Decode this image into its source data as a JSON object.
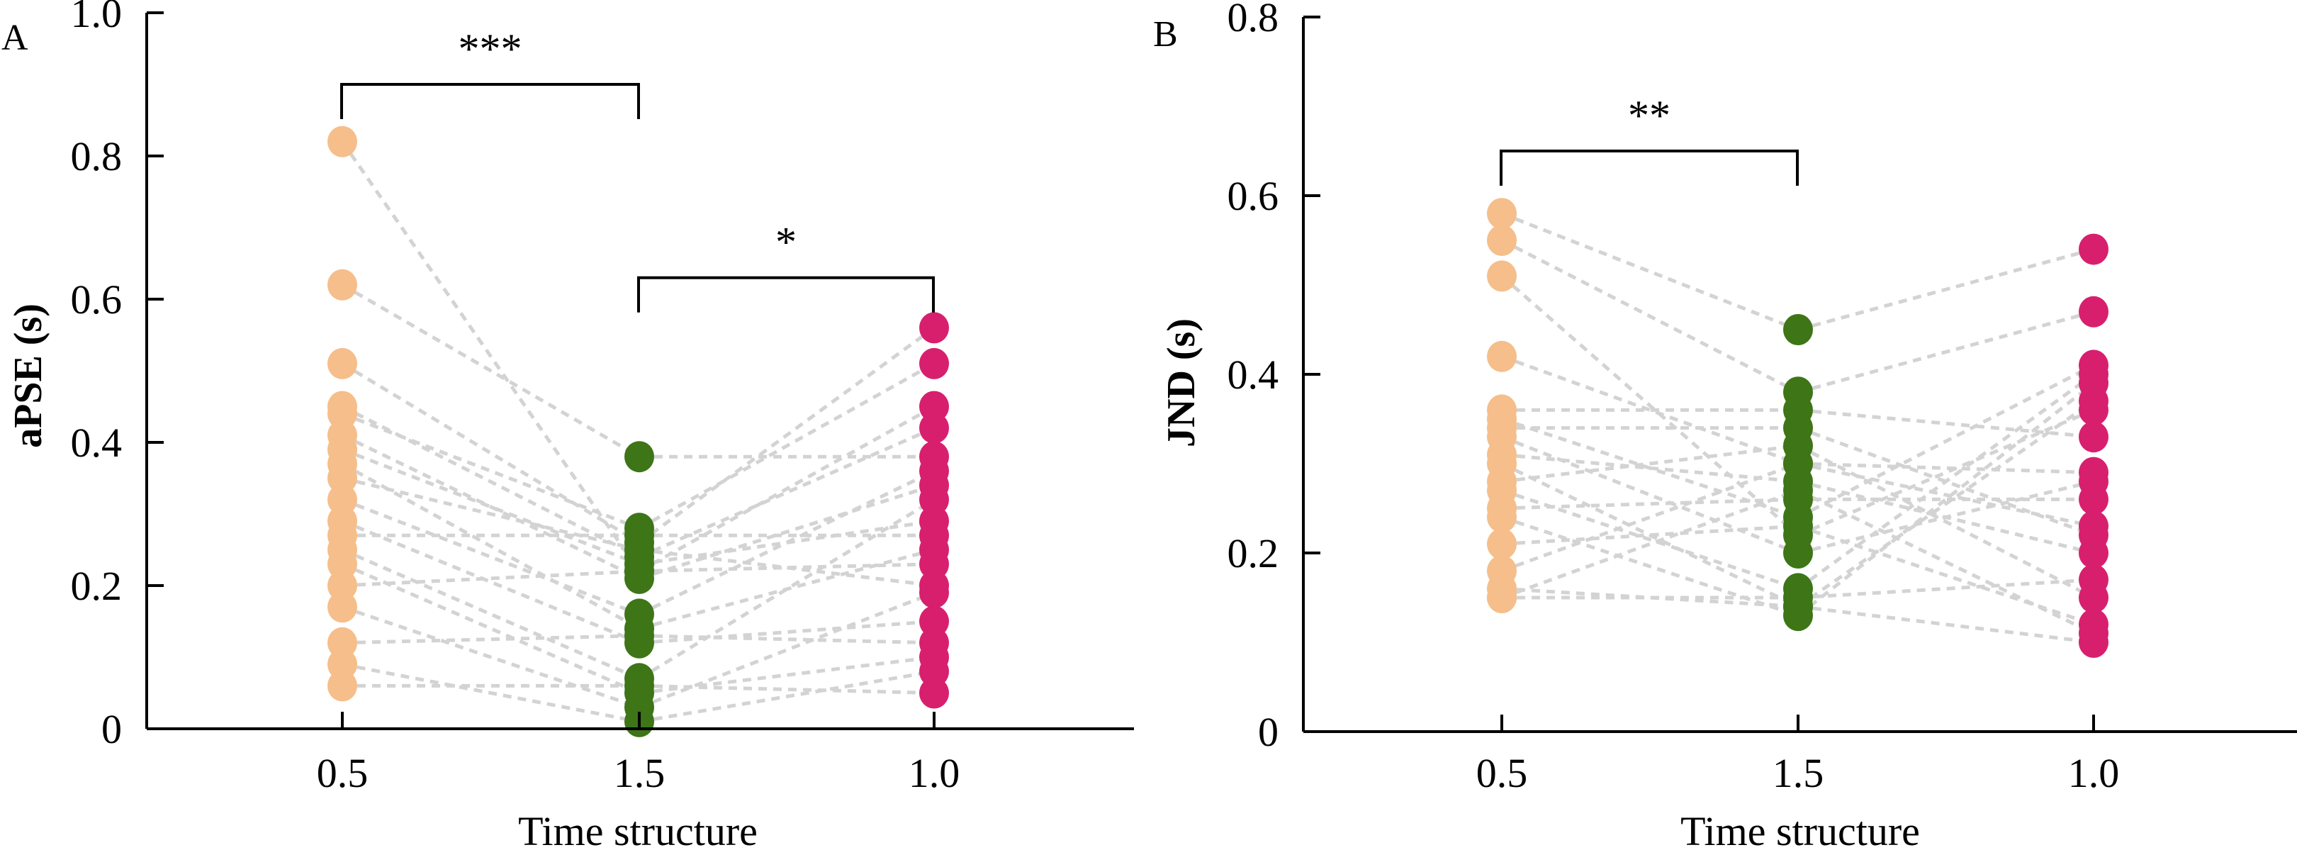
{
  "chart_data": [
    {
      "type": "scatter",
      "panel_label": "A",
      "title": "",
      "xlabel": "Time structure",
      "ylabel": "aPSE (s)",
      "categories": [
        "0.5",
        "1.5",
        "1.0"
      ],
      "ylim": [
        0,
        1.0
      ],
      "yticks": [
        0,
        0.2,
        0.4,
        0.6,
        0.8,
        1.0
      ],
      "ytick_labels": [
        "0",
        "0.2",
        "0.4",
        "0.6",
        "0.8",
        "1.0"
      ],
      "grid": false,
      "paired": true,
      "series": [
        {
          "name": "0.5",
          "color": "#F5BE8A",
          "values": [
            0.82,
            0.62,
            0.51,
            0.45,
            0.44,
            0.41,
            0.39,
            0.37,
            0.35,
            0.32,
            0.29,
            0.27,
            0.25,
            0.23,
            0.2,
            0.17,
            0.12,
            0.09,
            0.06
          ]
        },
        {
          "name": "1.5",
          "color": "#3D7517",
          "values": [
            0.22,
            0.38,
            0.26,
            0.24,
            0.28,
            0.21,
            0.23,
            0.14,
            0.25,
            0.16,
            0.12,
            0.27,
            0.07,
            0.05,
            0.22,
            0.03,
            0.13,
            0.01,
            0.06
          ]
        },
        {
          "name": "1.0",
          "color": "#D81F6E",
          "values": [
            0.45,
            0.38,
            0.56,
            0.42,
            0.51,
            0.34,
            0.29,
            0.25,
            0.2,
            0.36,
            0.15,
            0.27,
            0.32,
            0.1,
            0.23,
            0.19,
            0.12,
            0.08,
            0.05
          ]
        }
      ],
      "connector_color": "#D3D3D3",
      "annotations": [
        {
          "type": "significance",
          "from": "0.5",
          "to": "1.5",
          "label": "***",
          "level": 0.9
        },
        {
          "type": "significance",
          "from": "1.5",
          "to": "1.0",
          "label": "*",
          "level": 0.63
        }
      ]
    },
    {
      "type": "scatter",
      "panel_label": "B",
      "title": "",
      "xlabel": "Time structure",
      "ylabel": "JND (s)",
      "categories": [
        "0.5",
        "1.5",
        "1.0"
      ],
      "ylim": [
        0,
        0.8
      ],
      "yticks": [
        0,
        0.2,
        0.4,
        0.6,
        0.8
      ],
      "ytick_labels": [
        "0",
        "0.2",
        "0.4",
        "0.6",
        "0.8"
      ],
      "grid": false,
      "paired": true,
      "series": [
        {
          "name": "0.5",
          "color": "#F5BE8A",
          "values": [
            0.58,
            0.55,
            0.51,
            0.42,
            0.36,
            0.35,
            0.34,
            0.33,
            0.31,
            0.3,
            0.28,
            0.27,
            0.25,
            0.24,
            0.21,
            0.18,
            0.16,
            0.15,
            0.15
          ]
        },
        {
          "name": "1.5",
          "color": "#3D7517",
          "values": [
            0.45,
            0.38,
            0.22,
            0.3,
            0.36,
            0.24,
            0.34,
            0.2,
            0.28,
            0.14,
            0.32,
            0.16,
            0.26,
            0.13,
            0.23,
            0.3,
            0.14,
            0.15,
            0.27
          ]
        },
        {
          "name": "1.0",
          "color": "#D81F6E",
          "values": [
            0.54,
            0.47,
            0.36,
            0.29,
            0.33,
            0.41,
            0.22,
            0.28,
            0.2,
            0.37,
            0.15,
            0.4,
            0.26,
            0.39,
            0.12,
            0.23,
            0.1,
            0.17,
            0.11
          ]
        }
      ],
      "connector_color": "#D3D3D3",
      "annotations": [
        {
          "type": "significance",
          "from": "0.5",
          "to": "1.5",
          "label": "**",
          "level": 0.65
        }
      ]
    }
  ]
}
